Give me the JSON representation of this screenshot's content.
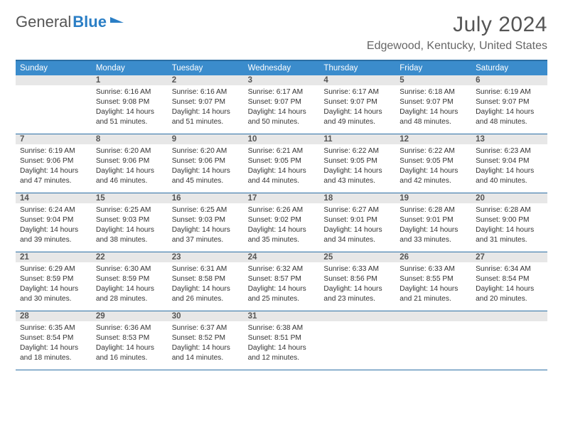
{
  "logo": {
    "word1": "General",
    "word2": "Blue",
    "accent": "#2a7ec5"
  },
  "header": {
    "title": "July 2024",
    "location": "Edgewood, Kentucky, United States"
  },
  "labels": {
    "sunrise": "Sunrise:",
    "sunset": "Sunset:",
    "daylight": "Daylight:"
  },
  "colors": {
    "headerBar": "#3b8ccc",
    "ruleLine": "#2b6fa5",
    "dayNumBg": "#e7e7e7",
    "textMuted": "#555"
  },
  "dayNames": [
    "Sunday",
    "Monday",
    "Tuesday",
    "Wednesday",
    "Thursday",
    "Friday",
    "Saturday"
  ],
  "layout": {
    "firstWeekdayIndex": 1,
    "daysInMonth": 31,
    "cellHeight": 82,
    "columns": 7
  },
  "days": [
    {
      "n": 1,
      "sunrise": "6:16 AM",
      "sunset": "9:08 PM",
      "daylight": "14 hours and 51 minutes."
    },
    {
      "n": 2,
      "sunrise": "6:16 AM",
      "sunset": "9:07 PM",
      "daylight": "14 hours and 51 minutes."
    },
    {
      "n": 3,
      "sunrise": "6:17 AM",
      "sunset": "9:07 PM",
      "daylight": "14 hours and 50 minutes."
    },
    {
      "n": 4,
      "sunrise": "6:17 AM",
      "sunset": "9:07 PM",
      "daylight": "14 hours and 49 minutes."
    },
    {
      "n": 5,
      "sunrise": "6:18 AM",
      "sunset": "9:07 PM",
      "daylight": "14 hours and 48 minutes."
    },
    {
      "n": 6,
      "sunrise": "6:19 AM",
      "sunset": "9:07 PM",
      "daylight": "14 hours and 48 minutes."
    },
    {
      "n": 7,
      "sunrise": "6:19 AM",
      "sunset": "9:06 PM",
      "daylight": "14 hours and 47 minutes."
    },
    {
      "n": 8,
      "sunrise": "6:20 AM",
      "sunset": "9:06 PM",
      "daylight": "14 hours and 46 minutes."
    },
    {
      "n": 9,
      "sunrise": "6:20 AM",
      "sunset": "9:06 PM",
      "daylight": "14 hours and 45 minutes."
    },
    {
      "n": 10,
      "sunrise": "6:21 AM",
      "sunset": "9:05 PM",
      "daylight": "14 hours and 44 minutes."
    },
    {
      "n": 11,
      "sunrise": "6:22 AM",
      "sunset": "9:05 PM",
      "daylight": "14 hours and 43 minutes."
    },
    {
      "n": 12,
      "sunrise": "6:22 AM",
      "sunset": "9:05 PM",
      "daylight": "14 hours and 42 minutes."
    },
    {
      "n": 13,
      "sunrise": "6:23 AM",
      "sunset": "9:04 PM",
      "daylight": "14 hours and 40 minutes."
    },
    {
      "n": 14,
      "sunrise": "6:24 AM",
      "sunset": "9:04 PM",
      "daylight": "14 hours and 39 minutes."
    },
    {
      "n": 15,
      "sunrise": "6:25 AM",
      "sunset": "9:03 PM",
      "daylight": "14 hours and 38 minutes."
    },
    {
      "n": 16,
      "sunrise": "6:25 AM",
      "sunset": "9:03 PM",
      "daylight": "14 hours and 37 minutes."
    },
    {
      "n": 17,
      "sunrise": "6:26 AM",
      "sunset": "9:02 PM",
      "daylight": "14 hours and 35 minutes."
    },
    {
      "n": 18,
      "sunrise": "6:27 AM",
      "sunset": "9:01 PM",
      "daylight": "14 hours and 34 minutes."
    },
    {
      "n": 19,
      "sunrise": "6:28 AM",
      "sunset": "9:01 PM",
      "daylight": "14 hours and 33 minutes."
    },
    {
      "n": 20,
      "sunrise": "6:28 AM",
      "sunset": "9:00 PM",
      "daylight": "14 hours and 31 minutes."
    },
    {
      "n": 21,
      "sunrise": "6:29 AM",
      "sunset": "8:59 PM",
      "daylight": "14 hours and 30 minutes."
    },
    {
      "n": 22,
      "sunrise": "6:30 AM",
      "sunset": "8:59 PM",
      "daylight": "14 hours and 28 minutes."
    },
    {
      "n": 23,
      "sunrise": "6:31 AM",
      "sunset": "8:58 PM",
      "daylight": "14 hours and 26 minutes."
    },
    {
      "n": 24,
      "sunrise": "6:32 AM",
      "sunset": "8:57 PM",
      "daylight": "14 hours and 25 minutes."
    },
    {
      "n": 25,
      "sunrise": "6:33 AM",
      "sunset": "8:56 PM",
      "daylight": "14 hours and 23 minutes."
    },
    {
      "n": 26,
      "sunrise": "6:33 AM",
      "sunset": "8:55 PM",
      "daylight": "14 hours and 21 minutes."
    },
    {
      "n": 27,
      "sunrise": "6:34 AM",
      "sunset": "8:54 PM",
      "daylight": "14 hours and 20 minutes."
    },
    {
      "n": 28,
      "sunrise": "6:35 AM",
      "sunset": "8:54 PM",
      "daylight": "14 hours and 18 minutes."
    },
    {
      "n": 29,
      "sunrise": "6:36 AM",
      "sunset": "8:53 PM",
      "daylight": "14 hours and 16 minutes."
    },
    {
      "n": 30,
      "sunrise": "6:37 AM",
      "sunset": "8:52 PM",
      "daylight": "14 hours and 14 minutes."
    },
    {
      "n": 31,
      "sunrise": "6:38 AM",
      "sunset": "8:51 PM",
      "daylight": "14 hours and 12 minutes."
    }
  ]
}
